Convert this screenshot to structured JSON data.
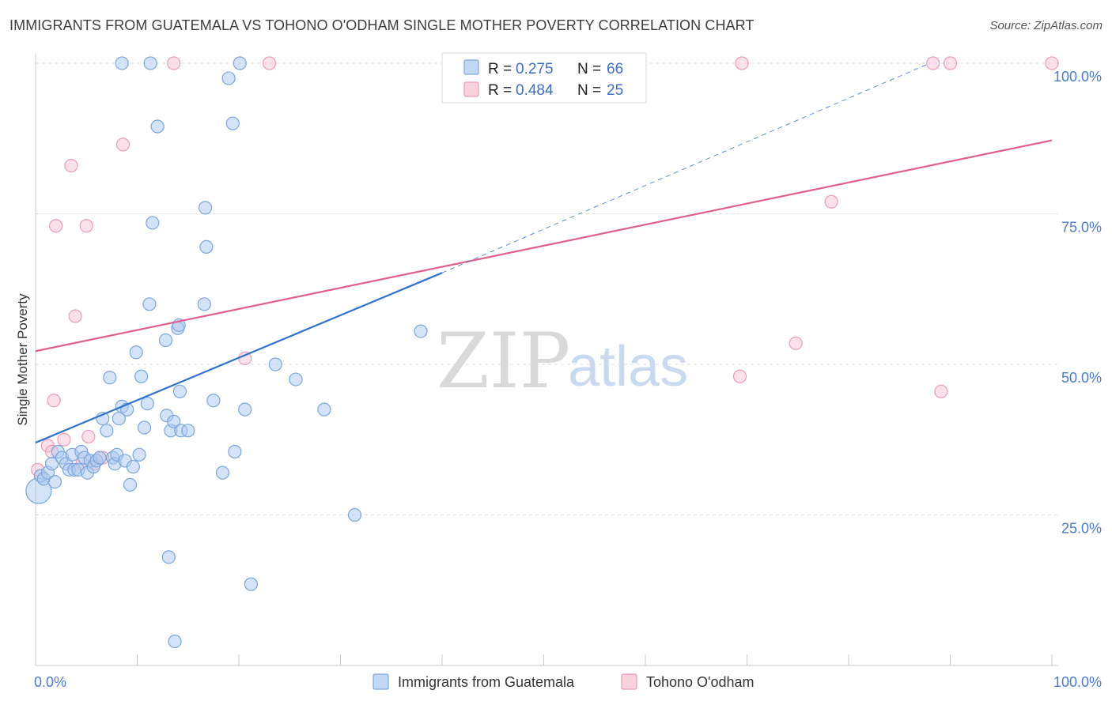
{
  "title": "IMMIGRANTS FROM GUATEMALA VS TOHONO O'ODHAM SINGLE MOTHER POVERTY CORRELATION CHART",
  "source": "Source: ZipAtlas.com",
  "watermark": {
    "zip": "ZIP",
    "atlas": "atlas"
  },
  "legend": {
    "rows": [
      {
        "r_label": "R =",
        "r_value": "0.275",
        "n_label": "N =",
        "n_value": "66"
      },
      {
        "r_label": "R =",
        "r_value": "0.484",
        "n_label": "N =",
        "n_value": "25"
      }
    ]
  },
  "bottom_legend": [
    "Immigrants from Guatemala",
    "Tohono O'odham"
  ],
  "chart_data": {
    "type": "scatter",
    "xlabel": "",
    "ylabel": "Single Mother Poverty",
    "xlim": [
      0,
      100
    ],
    "ylim": [
      0,
      100
    ],
    "x_tick_labels": [
      "0.0%",
      "100.0%"
    ],
    "y_ticks": [
      25,
      50,
      75,
      100
    ],
    "y_tick_labels": [
      "25.0%",
      "50.0%",
      "75.0%",
      "100.0%"
    ],
    "grid": true,
    "legend_position": "top-center",
    "colors": {
      "series1_fill": "#a9c8f0",
      "series1_stroke": "#7aa6dd",
      "series1_line": "#2f72d0",
      "series2_fill": "#f7bfd0",
      "series2_stroke": "#eb9bb5",
      "series2_line": "#e0608c",
      "tick_text": "#4a7cc9",
      "grid": "#dcdcdc"
    },
    "series": [
      {
        "name": "Immigrants from Guatemala",
        "r": 0.275,
        "n": 66,
        "trend": {
          "x0": 0,
          "y0": 37.0,
          "x1": 40,
          "y1": 65.2
        },
        "trend_extension": {
          "x0": 40,
          "y0": 65.2,
          "x1": 88,
          "y1": 100
        },
        "points": [
          [
            0.3,
            29
          ],
          [
            0.5,
            31.5
          ],
          [
            0.8,
            31
          ],
          [
            1.2,
            32
          ],
          [
            1.6,
            33.5
          ],
          [
            1.9,
            30.5
          ],
          [
            2.2,
            35.5
          ],
          [
            2.6,
            34.5
          ],
          [
            3.0,
            33.5
          ],
          [
            3.3,
            32.5
          ],
          [
            3.6,
            35
          ],
          [
            3.8,
            32.5
          ],
          [
            4.2,
            32.5
          ],
          [
            4.5,
            35.5
          ],
          [
            4.8,
            34.5
          ],
          [
            5.1,
            32
          ],
          [
            5.4,
            34
          ],
          [
            5.7,
            33
          ],
          [
            6.0,
            34
          ],
          [
            6.3,
            34.5
          ],
          [
            6.6,
            41
          ],
          [
            7.0,
            39
          ],
          [
            7.3,
            47.8
          ],
          [
            7.6,
            34.5
          ],
          [
            7.8,
            33.5
          ],
          [
            8.0,
            35
          ],
          [
            8.2,
            41
          ],
          [
            8.5,
            43
          ],
          [
            8.8,
            34
          ],
          [
            9.0,
            42.5
          ],
          [
            9.3,
            30
          ],
          [
            9.6,
            33
          ],
          [
            9.9,
            52
          ],
          [
            10.2,
            35
          ],
          [
            10.4,
            48
          ],
          [
            10.7,
            39.5
          ],
          [
            11.0,
            43.5
          ],
          [
            11.2,
            60
          ],
          [
            11.5,
            73.5
          ],
          [
            12.0,
            89.5
          ],
          [
            12.8,
            54
          ],
          [
            12.9,
            41.5
          ],
          [
            13.1,
            18
          ],
          [
            13.3,
            39
          ],
          [
            13.6,
            40.5
          ],
          [
            14.0,
            56
          ],
          [
            14.1,
            56.5
          ],
          [
            14.2,
            45.5
          ],
          [
            14.3,
            39
          ],
          [
            15.0,
            39
          ],
          [
            16.6,
            60
          ],
          [
            16.7,
            76
          ],
          [
            16.8,
            69.5
          ],
          [
            17.5,
            44
          ],
          [
            18.4,
            32
          ],
          [
            19.4,
            90
          ],
          [
            19.0,
            97.5
          ],
          [
            19.6,
            35.5
          ],
          [
            20.6,
            42.5
          ],
          [
            21.2,
            13.5
          ],
          [
            23.6,
            50
          ],
          [
            25.6,
            47.5
          ],
          [
            28.4,
            42.5
          ],
          [
            31.4,
            25
          ],
          [
            37.9,
            55.5
          ],
          [
            13.7,
            4
          ]
        ],
        "points_top": [
          [
            8.5,
            100
          ],
          [
            11.3,
            100
          ],
          [
            20.1,
            100
          ]
        ]
      },
      {
        "name": "Tohono O'odham",
        "r": 0.484,
        "n": 25,
        "trend": {
          "x0": 0,
          "y0": 52.2,
          "x1": 100,
          "y1": 87.2
        },
        "points": [
          [
            0.2,
            32.5
          ],
          [
            1.2,
            36.5
          ],
          [
            1.6,
            35.5
          ],
          [
            1.8,
            44
          ],
          [
            2.0,
            73
          ],
          [
            2.8,
            37.5
          ],
          [
            3.5,
            83
          ],
          [
            3.9,
            58
          ],
          [
            4.6,
            33.5
          ],
          [
            5.0,
            73
          ],
          [
            5.2,
            38
          ],
          [
            5.8,
            33.5
          ],
          [
            6.6,
            34.5
          ],
          [
            8.6,
            86.5
          ],
          [
            20.6,
            51
          ],
          [
            69.3,
            48
          ],
          [
            74.8,
            53.5
          ],
          [
            78.3,
            77
          ],
          [
            89.1,
            45.5
          ],
          [
            13.6,
            100
          ],
          [
            23.0,
            100
          ],
          [
            69.5,
            100
          ],
          [
            88.3,
            100
          ],
          [
            90.0,
            100
          ],
          [
            100.0,
            100
          ]
        ]
      }
    ]
  }
}
